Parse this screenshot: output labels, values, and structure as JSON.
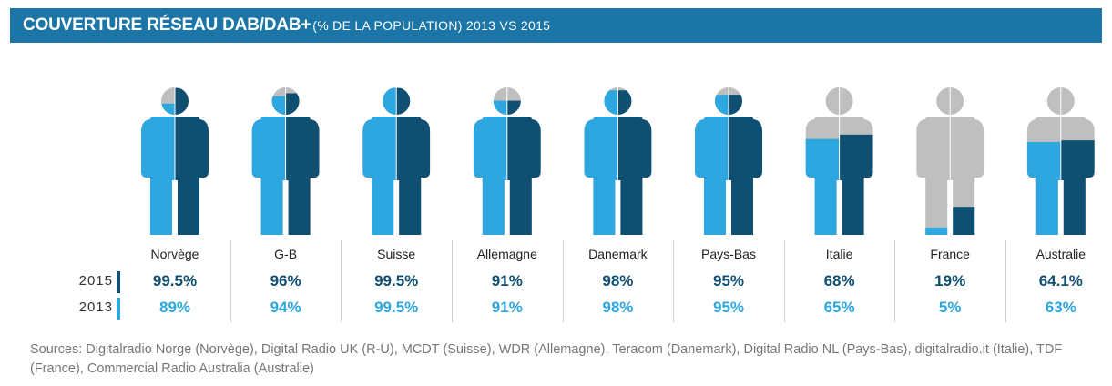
{
  "header": {
    "title_main": "COUVERTURE RÉSEAU DAB/DAB+",
    "title_sub": "(% DE LA POPULATION) 2013 VS 2015"
  },
  "colors": {
    "color_2015": "#0e4f72",
    "color_2013": "#2ea6df",
    "uncovered": "#bfbfbf",
    "header_bg": "#1b75a6"
  },
  "legend": {
    "year_2015": "2015",
    "year_2013": "2013"
  },
  "chart_data": {
    "type": "pictogram",
    "title": "COUVERTURE RÉSEAU DAB/DAB+ (% DE LA POPULATION) 2013 VS 2015",
    "categories": [
      "Norvège",
      "G-B",
      "Suisse",
      "Allemagne",
      "Danemark",
      "Pays-Bas",
      "Italie",
      "France",
      "Australie"
    ],
    "series": [
      {
        "name": "2015",
        "values": [
          99.5,
          96,
          99.5,
          91,
          98,
          95,
          68,
          19,
          64.1
        ],
        "labels": [
          "99.5%",
          "96%",
          "99.5%",
          "91%",
          "98%",
          "95%",
          "68%",
          "19%",
          "64.1%"
        ]
      },
      {
        "name": "2013",
        "values": [
          89,
          94,
          99.5,
          91,
          98,
          95,
          65,
          5,
          63
        ],
        "labels": [
          "89%",
          "94%",
          "99.5%",
          "91%",
          "98%",
          "95%",
          "65%",
          "5%",
          "63%"
        ]
      }
    ],
    "unit": "% de la population"
  },
  "sources": "Sources: Digitalradio Norge (Norvège), Digital Radio UK (R-U), MCDT (Suisse), WDR (Allemagne), Teracom (Danemark), Digital Radio NL (Pays-Bas), digitalradio.it (Italie), TDF (France), Commercial Radio Australia (Australie)"
}
